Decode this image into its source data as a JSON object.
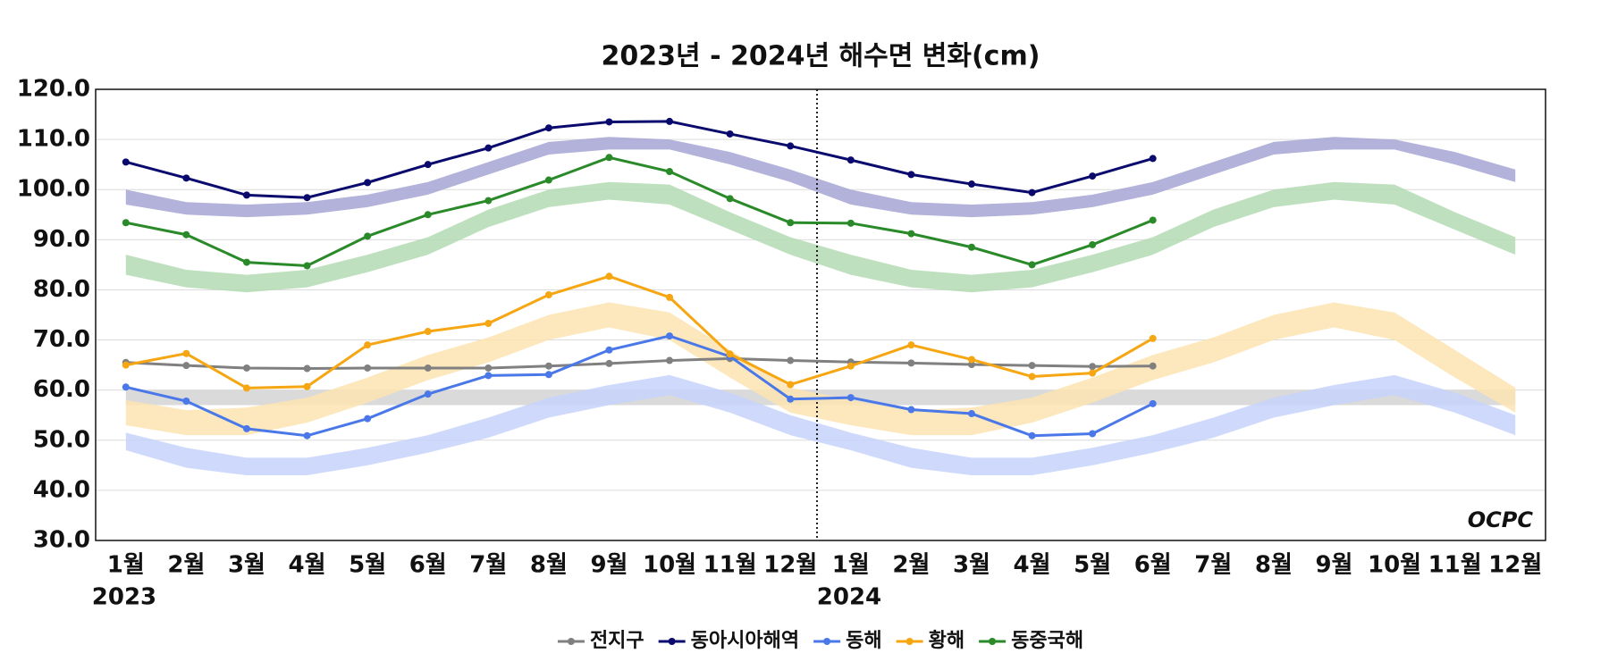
{
  "chart_data": {
    "type": "line",
    "title": "2023년 - 2024년 해수면 변화(cm)",
    "categories": [
      "1월",
      "2월",
      "3월",
      "4월",
      "5월",
      "6월",
      "7월",
      "8월",
      "9월",
      "10월",
      "11월",
      "12월",
      "1월",
      "2월",
      "3월",
      "4월",
      "5월",
      "6월",
      "7월",
      "8월",
      "9월",
      "10월",
      "11월",
      "12월"
    ],
    "year_labels": [
      {
        "index": 0,
        "label": "2023"
      },
      {
        "index": 12,
        "label": "2024"
      }
    ],
    "ylim": [
      30,
      120
    ],
    "yticks": [
      {
        "value": 30,
        "label": "30.0"
      },
      {
        "value": 40,
        "label": "40.0"
      },
      {
        "value": 50,
        "label": "50.0"
      },
      {
        "value": 60,
        "label": "60.0"
      },
      {
        "value": 70,
        "label": "70.0"
      },
      {
        "value": 80,
        "label": "80.0"
      },
      {
        "value": 90,
        "label": "90.0"
      },
      {
        "value": 100,
        "label": "100.0"
      },
      {
        "value": 110,
        "label": "110.0"
      },
      {
        "value": 120,
        "label": "120.0"
      }
    ],
    "grid": true,
    "legend": "bottom",
    "logo": "OCPC",
    "series": [
      {
        "name": "전지구",
        "color": "#808080",
        "values": [
          65.5,
          64.9,
          64.4,
          64.3,
          64.4,
          64.4,
          64.4,
          64.8,
          65.3,
          65.9,
          66.3,
          65.9,
          65.6,
          65.4,
          65.1,
          64.9,
          64.7,
          64.8,
          null,
          null,
          null,
          null,
          null,
          null
        ]
      },
      {
        "name": "동아시아해역",
        "color": "#0a0a6e",
        "values": [
          105.5,
          102.3,
          98.9,
          98.4,
          101.4,
          105.0,
          108.3,
          112.3,
          113.5,
          113.6,
          111.1,
          108.7,
          105.9,
          103.0,
          101.1,
          99.4,
          102.7,
          106.2,
          null,
          null,
          null,
          null,
          null,
          null
        ]
      },
      {
        "name": "동해",
        "color": "#4a78e8",
        "values": [
          60.6,
          57.8,
          52.3,
          50.9,
          54.3,
          59.2,
          62.9,
          63.1,
          68.0,
          70.8,
          66.7,
          58.2,
          58.5,
          56.1,
          55.3,
          50.9,
          51.3,
          57.3,
          null,
          null,
          null,
          null,
          null,
          null
        ]
      },
      {
        "name": "황해",
        "color": "#f5a612",
        "values": [
          65.0,
          67.3,
          60.4,
          60.7,
          69.0,
          71.7,
          73.3,
          79.0,
          82.7,
          78.5,
          67.2,
          61.1,
          64.8,
          69.0,
          66.1,
          62.7,
          63.4,
          70.3,
          null,
          null,
          null,
          null,
          null,
          null
        ]
      },
      {
        "name": "동중국해",
        "color": "#2a8a2a",
        "values": [
          93.4,
          91.0,
          85.5,
          84.8,
          90.7,
          95.0,
          97.8,
          101.9,
          106.4,
          103.6,
          98.2,
          93.4,
          93.3,
          91.2,
          88.5,
          85.0,
          89.0,
          93.9,
          null,
          null,
          null,
          null,
          null,
          null
        ]
      }
    ],
    "bands": [
      {
        "color": "#d3d3d3",
        "lower": [
          57,
          57,
          57,
          57,
          57,
          57,
          57,
          57,
          57,
          57,
          57,
          57,
          57,
          57,
          57,
          57,
          57,
          57,
          57,
          57,
          57,
          57,
          57,
          57
        ],
        "upper": [
          60,
          60,
          60,
          60,
          60,
          60,
          60,
          60,
          60,
          60,
          60,
          60,
          60,
          60,
          60,
          60,
          60,
          60,
          60,
          60,
          60,
          60,
          60,
          60
        ]
      },
      {
        "color": "#a4a4d4",
        "lower": [
          97,
          95,
          94.5,
          95,
          96.5,
          99,
          103,
          107,
          108,
          108,
          105,
          101.5,
          97,
          95,
          94.5,
          95,
          96.5,
          99,
          103,
          107,
          108,
          108,
          105,
          101.5
        ],
        "upper": [
          100,
          97.5,
          97,
          97.5,
          99,
          101.5,
          105.5,
          109.5,
          110.5,
          110,
          107.5,
          104,
          100,
          97.5,
          97,
          97.5,
          99,
          101.5,
          105.5,
          109.5,
          110.5,
          110,
          107.5,
          104
        ]
      },
      {
        "color": "#b3dbb3",
        "lower": [
          83,
          80.5,
          79.5,
          80.5,
          83.5,
          87,
          92.5,
          96.5,
          98,
          97,
          92,
          87,
          83,
          80.5,
          79.5,
          80.5,
          83.5,
          87,
          92.5,
          96.5,
          98,
          97,
          92,
          87
        ],
        "upper": [
          87,
          84,
          83,
          84,
          87,
          90.5,
          96,
          100,
          101.5,
          101,
          95.5,
          90.5,
          87,
          84,
          83,
          84,
          87,
          90.5,
          96,
          100,
          101.5,
          101,
          95.5,
          90.5
        ]
      },
      {
        "color": "#fde4b2",
        "lower": [
          53,
          51,
          51,
          53.5,
          57.5,
          62,
          65.5,
          70,
          72.5,
          70,
          62.5,
          55.5,
          53,
          51,
          51,
          53.5,
          57.5,
          62,
          65.5,
          70,
          72.5,
          70,
          62.5,
          55.5
        ],
        "upper": [
          58,
          56,
          56.5,
          58.5,
          62.5,
          67,
          70.5,
          75,
          77.5,
          75.5,
          68,
          60.5,
          58,
          56,
          56.5,
          58.5,
          62.5,
          67,
          70.5,
          75,
          77.5,
          75.5,
          68,
          60.5
        ]
      },
      {
        "color": "#c6d2fb",
        "lower": [
          48,
          44.5,
          43,
          43,
          45,
          47.5,
          50.5,
          54.5,
          57,
          59,
          55.5,
          51,
          48,
          44.5,
          43,
          43,
          45,
          47.5,
          50.5,
          54.5,
          57,
          59,
          55.5,
          51
        ],
        "upper": [
          51.5,
          48.5,
          46.5,
          46.5,
          48.5,
          51,
          54.5,
          58.5,
          61,
          63,
          59.5,
          55,
          51.5,
          48.5,
          46.5,
          46.5,
          48.5,
          51,
          54.5,
          58.5,
          61,
          63,
          59.5,
          55
        ]
      }
    ]
  }
}
